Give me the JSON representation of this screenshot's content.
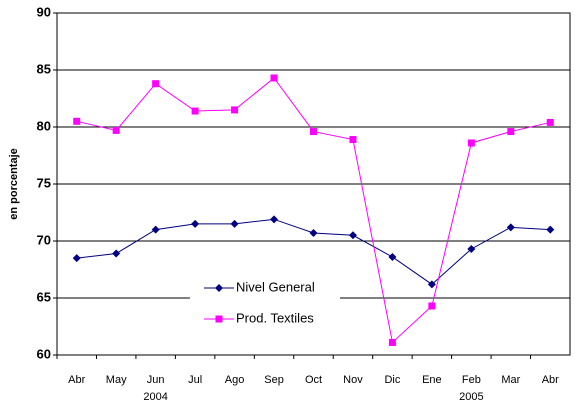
{
  "chart_data": {
    "type": "line",
    "y_label": "en porcentaje",
    "categories": [
      "Abr",
      "May",
      "Jun",
      "Jul",
      "Ago",
      "Sep",
      "Oct",
      "Nov",
      "Dic",
      "Ene",
      "Feb",
      "Mar",
      "Abr"
    ],
    "sublabels": [
      null,
      null,
      "2004",
      null,
      null,
      null,
      null,
      null,
      null,
      null,
      "2005",
      null,
      null
    ],
    "series": [
      {
        "name": "Nivel General",
        "color": "#000080",
        "marker": "diamond",
        "values": [
          68.5,
          68.9,
          71.0,
          71.5,
          71.5,
          71.9,
          70.7,
          70.5,
          68.6,
          66.2,
          69.3,
          71.2,
          71.0
        ]
      },
      {
        "name": "Prod. Textiles",
        "color": "#ff00ff",
        "marker": "square",
        "values": [
          80.5,
          79.7,
          83.8,
          81.4,
          81.5,
          84.3,
          79.6,
          78.9,
          61.1,
          64.3,
          78.6,
          79.6,
          80.4
        ]
      }
    ],
    "ylim": [
      60,
      90
    ],
    "yticks": [
      60,
      65,
      70,
      75,
      80,
      85,
      90
    ],
    "grid": true,
    "legend": "lower-left"
  }
}
